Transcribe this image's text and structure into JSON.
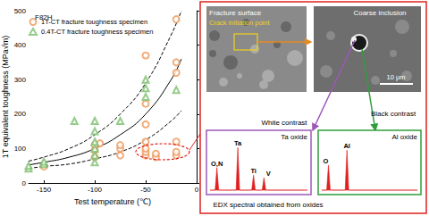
{
  "chart_data": {
    "type": "scatter",
    "title": "F82H",
    "x_label": "Test temperature (℃)",
    "y_label": "1T equivalent toughness (MPa√m)",
    "xlim": [
      -165,
      0
    ],
    "xticks": [
      -150,
      -100,
      -50,
      0
    ],
    "ylim": [
      0,
      500
    ],
    "yticks": [
      0,
      100,
      200,
      300,
      400,
      500
    ],
    "grid": false,
    "legend": "upper left",
    "series": [
      {
        "name": "1T-CT fracture toughness specimen",
        "type": "scatter",
        "marker": "circle",
        "color": "#ee9a5c",
        "x": [
          -150,
          -100,
          -100,
          -100,
          -95,
          -75,
          -75,
          -75,
          -50,
          -50,
          -50,
          -50,
          -50,
          -50,
          -50,
          -40,
          -40,
          -20,
          -20,
          -20,
          -20,
          -20,
          -20
        ],
        "values": [
          48,
          75,
          95,
          110,
          115,
          80,
          100,
          110,
          80,
          90,
          100,
          120,
          170,
          230,
          370,
          75,
          85,
          80,
          90,
          120,
          320,
          350,
          475
        ]
      },
      {
        "name": "0.4T-CT fracture toughness specimen",
        "type": "scatter",
        "marker": "triangle",
        "color": "#7cbf6e",
        "x": [
          -165,
          -165,
          -150,
          -150,
          -120,
          -100,
          -100,
          -100,
          -100,
          -100,
          -100,
          -75,
          -50,
          -50,
          -50,
          -20
        ],
        "values": [
          42,
          50,
          55,
          62,
          180,
          60,
          80,
          100,
          120,
          150,
          180,
          180,
          250,
          275,
          300,
          270
        ]
      },
      {
        "type": "line",
        "line_style": "solid",
        "color": "#000000",
        "x": [
          -170,
          -150,
          -125,
          -100,
          -75,
          -50,
          -25,
          -15
        ],
        "values": [
          50,
          60,
          75,
          100,
          140,
          200,
          300,
          360
        ]
      },
      {
        "type": "line",
        "line_style": "dashed",
        "color": "#000000",
        "x": [
          -170,
          -150,
          -125,
          -100,
          -75,
          -50,
          -25,
          -15
        ],
        "values": [
          60,
          75,
          100,
          140,
          200,
          290,
          430,
          500
        ]
      },
      {
        "type": "line",
        "line_style": "dashed",
        "color": "#000000",
        "x": [
          -170,
          -150,
          -125,
          -100,
          -75,
          -50,
          -25,
          -15
        ],
        "values": [
          40,
          48,
          55,
          70,
          90,
          125,
          180,
          210
        ]
      }
    ]
  },
  "inset": {
    "fracture_surface": {
      "title": "Fracture surface",
      "marker_label": "Crack initiation point"
    },
    "inclusion_image": {
      "title": "Coarse inclusion",
      "scale_bar": "10 μm"
    },
    "white_contrast": {
      "label": "White contrast",
      "spectrum_title": "Ta oxide",
      "peaks": [
        "O,N",
        "Ta",
        "Ti",
        "V"
      ]
    },
    "black_contrast": {
      "label": "Black contrast",
      "spectrum_title": "Al oxide",
      "peaks": [
        "O",
        "Al"
      ]
    },
    "caption": "EDX spectral obtained from oxides"
  }
}
